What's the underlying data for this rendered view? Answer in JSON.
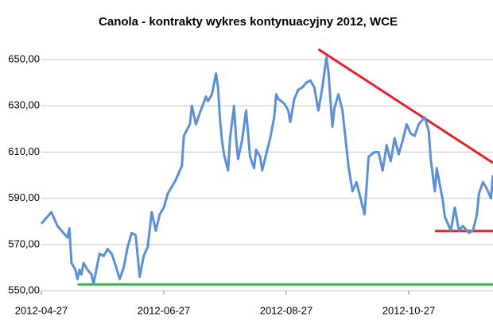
{
  "chart_data": {
    "type": "line",
    "title": "Canola - kontrakty  wykres kontynuacyjny 2012, WCE",
    "xlim": [
      "2012-04-27",
      "2012-12-08"
    ],
    "xticks": [
      "2012-04-27",
      "2012-06-27",
      "2012-08-27",
      "2012-10-27"
    ],
    "ylim": [
      550,
      660
    ],
    "yticks": [
      {
        "value": 550,
        "label": "550,00"
      },
      {
        "value": 570,
        "label": "570,00"
      },
      {
        "value": 590,
        "label": "590,00"
      },
      {
        "value": 610,
        "label": "610,00"
      },
      {
        "value": 630,
        "label": "630,00"
      },
      {
        "value": 650,
        "label": "650,00"
      }
    ],
    "grid": true,
    "series": [
      {
        "color": "#5b8fd6",
        "x": [
          "2012-04-27",
          "2012-05-02",
          "2012-05-05",
          "2012-05-08",
          "2012-05-10",
          "2012-05-11",
          "2012-05-12",
          "2012-05-14",
          "2012-05-15",
          "2012-05-16",
          "2012-05-17",
          "2012-05-18",
          "2012-05-20",
          "2012-05-22",
          "2012-05-23",
          "2012-05-26",
          "2012-05-28",
          "2012-05-30",
          "2012-06-01",
          "2012-06-03",
          "2012-06-05",
          "2012-06-07",
          "2012-06-09",
          "2012-06-11",
          "2012-06-13",
          "2012-06-15",
          "2012-06-17",
          "2012-06-19",
          "2012-06-21",
          "2012-06-23",
          "2012-06-25",
          "2012-06-27",
          "2012-06-29",
          "2012-07-01",
          "2012-07-03",
          "2012-07-06",
          "2012-07-07",
          "2012-07-10",
          "2012-07-11",
          "2012-07-13",
          "2012-07-15",
          "2012-07-18",
          "2012-07-19",
          "2012-07-21",
          "2012-07-23",
          "2012-07-24",
          "2012-07-25",
          "2012-07-26",
          "2012-07-27",
          "2012-07-29",
          "2012-07-30",
          "2012-08-01",
          "2012-08-02",
          "2012-08-03",
          "2012-08-05",
          "2012-08-07",
          "2012-08-09",
          "2012-08-11",
          "2012-08-12",
          "2012-08-14",
          "2012-08-15",
          "2012-08-17",
          "2012-08-19",
          "2012-08-21",
          "2012-08-22",
          "2012-08-23",
          "2012-08-26",
          "2012-08-28",
          "2012-08-29",
          "2012-08-31",
          "2012-09-02",
          "2012-09-04",
          "2012-09-06",
          "2012-09-08",
          "2012-09-10",
          "2012-09-12",
          "2012-09-14",
          "2012-09-16",
          "2012-09-17",
          "2012-09-19",
          "2012-09-20",
          "2012-09-22",
          "2012-09-24",
          "2012-09-26",
          "2012-09-27",
          "2012-09-29",
          "2012-10-01",
          "2012-10-03",
          "2012-10-05",
          "2012-10-06",
          "2012-10-07",
          "2012-10-10",
          "2012-10-12",
          "2012-10-14",
          "2012-10-16",
          "2012-10-18",
          "2012-10-20",
          "2012-10-22",
          "2012-10-24",
          "2012-10-26",
          "2012-10-28",
          "2012-10-30",
          "2012-11-01",
          "2012-11-03",
          "2012-11-04",
          "2012-11-06",
          "2012-11-07",
          "2012-11-09",
          "2012-11-10",
          "2012-11-13",
          "2012-11-14",
          "2012-11-17",
          "2012-11-19",
          "2012-11-21",
          "2012-11-23",
          "2012-11-26",
          "2012-11-28",
          "2012-11-30",
          "2012-12-01",
          "2012-12-03",
          "2012-12-05",
          "2012-12-07",
          "2012-12-08"
        ],
        "values": [
          579,
          584,
          578,
          575,
          573,
          577,
          562,
          559,
          555,
          559,
          557,
          562,
          559,
          557,
          553,
          566,
          565,
          568,
          566,
          561,
          555,
          560,
          569,
          575,
          574,
          556,
          565,
          569,
          584,
          576,
          583,
          586,
          592,
          595,
          598,
          604,
          617,
          622,
          630,
          622,
          627,
          634,
          632,
          635,
          644,
          638,
          624,
          615,
          609,
          602,
          616,
          630,
          616,
          607,
          615,
          628,
          608,
          603,
          611,
          608,
          602,
          609,
          616,
          625,
          635,
          633,
          631,
          628,
          623,
          633,
          637,
          638,
          640,
          641,
          638,
          628,
          638,
          651,
          645,
          621,
          629,
          635,
          628,
          612,
          604,
          593,
          597,
          590,
          583,
          595,
          608,
          610,
          610,
          602,
          613,
          606,
          616,
          609,
          615,
          622,
          618,
          617,
          622,
          624,
          625,
          619,
          607,
          593,
          603,
          589,
          582,
          576,
          586,
          576,
          578,
          575,
          576,
          583,
          592,
          597,
          594,
          590,
          600
        ]
      }
    ],
    "lines": [
      {
        "color": "#e8202a",
        "x": [
          "2012-09-12",
          "2012-12-08"
        ],
        "values": [
          654.5,
          605.3
        ]
      },
      {
        "color": "#e8202a",
        "x": [
          "2012-11-09",
          "2012-12-08"
        ],
        "values": [
          575.8,
          575.8
        ]
      },
      {
        "color": "#2fb44a",
        "x": [
          "2012-05-15",
          "2012-12-08"
        ],
        "values": [
          552.7,
          552.7
        ]
      }
    ]
  }
}
